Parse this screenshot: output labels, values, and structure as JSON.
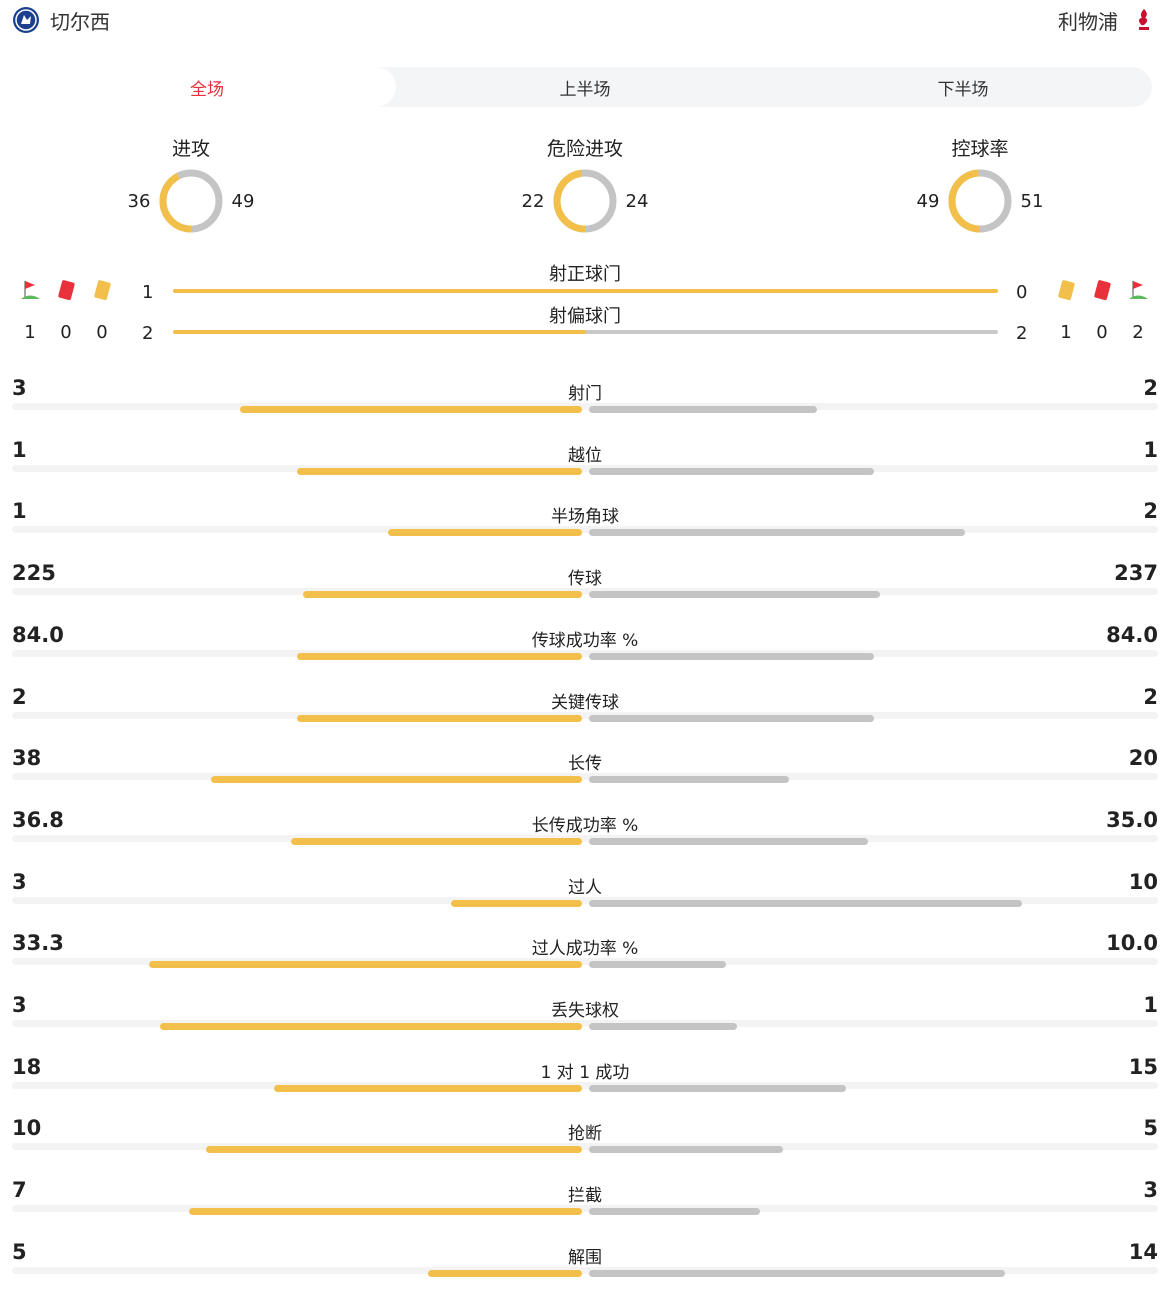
{
  "teams": {
    "home": "切尔西",
    "away": "利物浦"
  },
  "tabs": [
    {
      "label": "全场",
      "active": true
    },
    {
      "label": "上半场",
      "active": false
    },
    {
      "label": "下半场",
      "active": false
    }
  ],
  "gauges": [
    {
      "title": "进攻",
      "home": 36,
      "away": 49
    },
    {
      "title": "危险进攻",
      "home": 22,
      "away": 24
    },
    {
      "title": "控球率",
      "home": 49,
      "away": 51
    }
  ],
  "event_counts": {
    "home": {
      "corner": "1",
      "red": "0",
      "yellow": "0"
    },
    "away": {
      "yellow": "1",
      "red": "0",
      "corner": "2"
    }
  },
  "shots": [
    {
      "label": "射正球门",
      "home": 1,
      "away": 0
    },
    {
      "label": "射偏球门",
      "home": 2,
      "away": 2
    }
  ],
  "stats": [
    {
      "label": "射门",
      "home": "3",
      "away": "2"
    },
    {
      "label": "越位",
      "home": "1",
      "away": "1"
    },
    {
      "label": "半场角球",
      "home": "1",
      "away": "2"
    },
    {
      "label": "传球",
      "home": "225",
      "away": "237"
    },
    {
      "label": "传球成功率 %",
      "home": "84.0",
      "away": "84.0"
    },
    {
      "label": "关键传球",
      "home": "2",
      "away": "2"
    },
    {
      "label": "长传",
      "home": "38",
      "away": "20"
    },
    {
      "label": "长传成功率 %",
      "home": "36.8",
      "away": "35.0"
    },
    {
      "label": "过人",
      "home": "3",
      "away": "10"
    },
    {
      "label": "过人成功率 %",
      "home": "33.3",
      "away": "10.0"
    },
    {
      "label": "丢失球权",
      "home": "3",
      "away": "1"
    },
    {
      "label": "1 对 1 成功",
      "home": "18",
      "away": "15"
    },
    {
      "label": "抢断",
      "home": "10",
      "away": "5"
    },
    {
      "label": "拦截",
      "home": "7",
      "away": "3"
    },
    {
      "label": "解围",
      "home": "5",
      "away": "14"
    }
  ],
  "stat_bars": [
    {
      "home_fraction": 0.6,
      "away_fraction": 0.4
    },
    {
      "home_fraction": 0.5,
      "away_fraction": 0.5
    },
    {
      "home_fraction": 0.34,
      "away_fraction": 0.66
    },
    {
      "home_fraction": 0.49,
      "away_fraction": 0.51
    },
    {
      "home_fraction": 0.5,
      "away_fraction": 0.5
    },
    {
      "home_fraction": 0.5,
      "away_fraction": 0.5
    },
    {
      "home_fraction": 0.65,
      "away_fraction": 0.35
    },
    {
      "home_fraction": 0.51,
      "away_fraction": 0.49
    },
    {
      "home_fraction": 0.23,
      "away_fraction": 0.76
    },
    {
      "home_fraction": 0.76,
      "away_fraction": 0.24
    },
    {
      "home_fraction": 0.74,
      "away_fraction": 0.26
    },
    {
      "home_fraction": 0.54,
      "away_fraction": 0.45
    },
    {
      "home_fraction": 0.66,
      "away_fraction": 0.34
    },
    {
      "home_fraction": 0.69,
      "away_fraction": 0.3
    },
    {
      "home_fraction": 0.27,
      "away_fraction": 0.73
    }
  ],
  "colors": {
    "home": "#f2c04a",
    "away": "#c4c4c4",
    "accent": "#e8313a"
  }
}
